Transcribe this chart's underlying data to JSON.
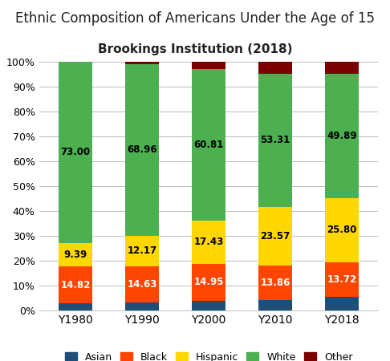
{
  "title": "Ethnic Composition of Americans Under the Age of 15",
  "subtitle": "Brookings Institution (2018)",
  "categories": [
    "Y1980",
    "Y1990",
    "Y2000",
    "Y2010",
    "Y2018"
  ],
  "series": {
    "Asian": [
      2.79,
      3.24,
      3.81,
      4.26,
      5.59
    ],
    "Black": [
      14.82,
      14.63,
      14.95,
      13.86,
      13.72
    ],
    "Hispanic": [
      9.39,
      12.17,
      17.43,
      23.57,
      25.8
    ],
    "White": [
      73.0,
      68.96,
      60.81,
      53.31,
      49.89
    ],
    "Other": [
      0.0,
      1.0,
      3.0,
      5.0,
      5.0
    ]
  },
  "colors": {
    "Asian": "#1F4E79",
    "Black": "#FF4500",
    "Hispanic": "#FFD700",
    "White": "#4CAF50",
    "Other": "#7B0000"
  },
  "ylim": [
    0,
    100
  ],
  "yticks": [
    0,
    10,
    20,
    30,
    40,
    50,
    60,
    70,
    80,
    90,
    100
  ],
  "ytick_labels": [
    "0%",
    "10%",
    "20%",
    "30%",
    "40%",
    "50%",
    "60%",
    "70%",
    "80%",
    "90%",
    "100%"
  ],
  "background_color": "#ffffff",
  "title_fontsize": 12,
  "subtitle_fontsize": 11,
  "label_fontsize": 8.5
}
